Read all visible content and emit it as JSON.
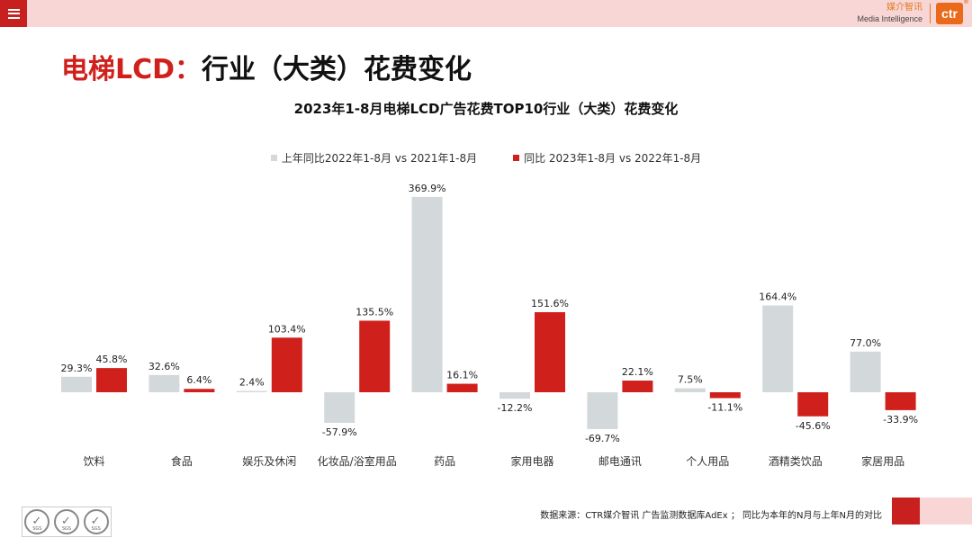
{
  "header": {
    "menu_icon": "hamburger-menu-icon",
    "brand_cn": "媒介智讯",
    "brand_en": "Media Intelligence",
    "logo_text": "ctr",
    "logo_mark": "®"
  },
  "page_title_highlight": "电梯LCD：",
  "page_title_rest": "行业（大类）花费变化",
  "colors": {
    "accent": "#d0201c",
    "prior": "#d3d8db",
    "current": "#d0201c"
  },
  "chart_data": {
    "type": "bar",
    "title": "2023年1-8月电梯LCD广告花费TOP10行业（大类）花费变化",
    "categories": [
      "饮料",
      "食品",
      "娱乐及休闲",
      "化妆品/浴室用品",
      "药品",
      "家用电器",
      "邮电通讯",
      "个人用品",
      "酒精类饮品",
      "家居用品"
    ],
    "series": [
      {
        "name": "上年同比2022年1-8月 vs 2021年1-8月",
        "values": [
          29.3,
          32.6,
          2.4,
          -57.9,
          369.9,
          -12.2,
          -69.7,
          7.5,
          164.4,
          77.0
        ],
        "labels": [
          "29.3%",
          "32.6%",
          "2.4%",
          "-57.9%",
          "369.9%",
          "-12.2%",
          "-69.7%",
          "7.5%",
          "164.4%",
          "77.0%"
        ]
      },
      {
        "name": "同比 2023年1-8月  vs 2022年1-8月",
        "values": [
          45.8,
          6.4,
          103.4,
          135.5,
          16.1,
          151.6,
          22.1,
          -11.1,
          -45.6,
          -33.9
        ],
        "labels": [
          "45.8%",
          "6.4%",
          "103.4%",
          "135.5%",
          "16.1%",
          "151.6%",
          "22.1%",
          "-11.1%",
          "-45.6%",
          "-33.9%"
        ]
      }
    ],
    "legend_position": "top-center",
    "grid": false
  },
  "footer": {
    "source": "数据来源：CTR媒介智讯 广告监测数据库AdEx ；  同比为本年的N月与上年N月的对比",
    "seal_text": "SGS"
  }
}
